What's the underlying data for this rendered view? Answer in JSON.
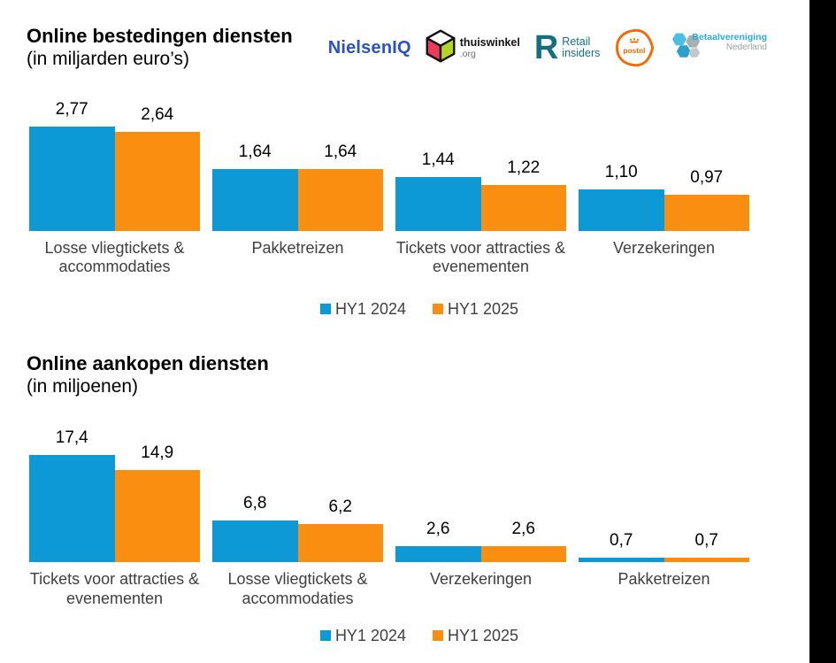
{
  "page": {
    "background": "#ffffff",
    "right_bar_color": "#000000"
  },
  "colors": {
    "hy1_2024": "#0D99D6",
    "hy1_2025": "#FA8E10"
  },
  "logos": {
    "nielseniq": {
      "text": "NielsenIQ",
      "color": "#2B52C5"
    },
    "thuiswinkel": {
      "line1": "thuiswinkel",
      "line2": ".org",
      "cube_left": "#ED3A5A",
      "cube_right": "#B5D426"
    },
    "retail_insiders": {
      "glyph": "R",
      "line1": "Retail",
      "line2": "insiders",
      "color": "#156F80"
    },
    "postnl": {
      "text": "postnl",
      "color": "#F56900"
    },
    "betaalvereniging": {
      "line1": "Betaalvereniging",
      "line2": "Nederland",
      "color1": "#29ABE2",
      "color2": "#98A0A3"
    }
  },
  "chart_data": [
    {
      "type": "bar",
      "title": "Online bestedingen diensten",
      "subtitle": "(in miljarden euro’s)",
      "xlabel": "",
      "ylabel": "",
      "ylim": [
        0,
        3
      ],
      "grid": false,
      "legend_position": "bottom",
      "categories": [
        "Losse vliegtickets & accommodaties",
        "Pakketreizen",
        "Tickets voor attracties & evenementen",
        "Verzekeringen"
      ],
      "series": [
        {
          "name": "HY1 2024",
          "color": "#0D99D6",
          "values": [
            2.77,
            1.64,
            1.44,
            1.1
          ],
          "labels": [
            "2,77",
            "1,64",
            "1,44",
            "1,10"
          ]
        },
        {
          "name": "HY1 2025",
          "color": "#FA8E10",
          "values": [
            2.64,
            1.64,
            1.22,
            0.97
          ],
          "labels": [
            "2,64",
            "1,64",
            "1,22",
            "0,97"
          ]
        }
      ]
    },
    {
      "type": "bar",
      "title": "Online aankopen diensten",
      "subtitle": "(in miljoenen)",
      "xlabel": "",
      "ylabel": "",
      "ylim": [
        0,
        20
      ],
      "grid": false,
      "legend_position": "bottom",
      "categories": [
        "Tickets voor attracties & evenementen",
        "Losse vliegtickets & accommodaties",
        "Verzekeringen",
        "Pakketreizen"
      ],
      "series": [
        {
          "name": "HY1 2024",
          "color": "#0D99D6",
          "values": [
            17.4,
            6.8,
            2.6,
            0.7
          ],
          "labels": [
            "17,4",
            "6,8",
            "2,6",
            "0,7"
          ]
        },
        {
          "name": "HY1 2025",
          "color": "#FA8E10",
          "values": [
            14.9,
            6.2,
            2.6,
            0.7
          ],
          "labels": [
            "14,9",
            "6,2",
            "2,6",
            "0,7"
          ]
        }
      ]
    }
  ]
}
